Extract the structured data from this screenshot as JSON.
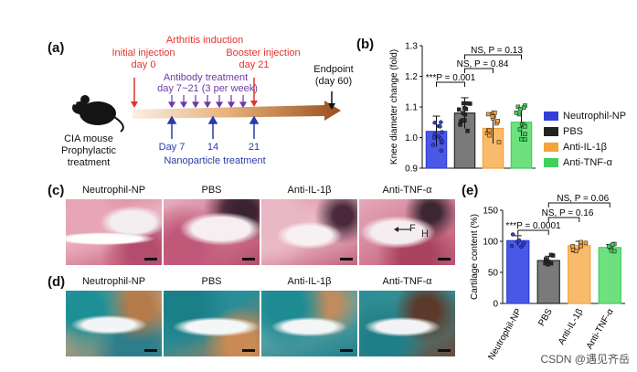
{
  "panels": {
    "a": "(a)",
    "b": "(b)",
    "c": "(c)",
    "d": "(d)",
    "e": "(e)"
  },
  "timeline": {
    "initial_injection": "Initial injection",
    "day0": "day 0",
    "arthritis_induction": "Arthritis induction",
    "booster_injection": "Booster injection",
    "day21_booster": "day 21",
    "antibody_treatment": "Antibody treatment",
    "antibody_days": "day 7~21 (3 per week)",
    "endpoint": "Endpoint",
    "endpoint_day": "(day 60)",
    "mouse_label_1": "CIA mouse",
    "mouse_label_2": "Prophylactic",
    "mouse_label_3": "treatment",
    "np_day7": "Day 7",
    "np_day14": "14",
    "np_day21": "21",
    "nanoparticle_treatment": "Nanoparticle treatment"
  },
  "colors": {
    "neutrophil_np": "#2f3fd8",
    "pbs": "#2a2a2a",
    "anti_il1b": "#f6a23a",
    "anti_tnfa": "#3fd05a",
    "red": "#e0342c",
    "blue": "#2b3aa8",
    "purple": "#6d3aa8"
  },
  "legend": {
    "items": [
      {
        "label": "Neutrophil-NP",
        "color": "#2f3fd8"
      },
      {
        "label": "PBS",
        "color": "#222222"
      },
      {
        "label": "Anti-IL-1β",
        "color": "#f6a23a"
      },
      {
        "label": "Anti-TNF-α",
        "color": "#3fd05a"
      }
    ]
  },
  "histology": {
    "groups": [
      "Neutrophil-NP",
      "PBS",
      "Anti-IL-1β",
      "Anti-TNF-α"
    ],
    "annotation_F": "F",
    "annotation_H": "H"
  },
  "chart_data": [
    {
      "type": "bar",
      "panel": "b",
      "categories": [
        "Neutrophil-NP",
        "PBS",
        "Anti-IL-1β",
        "Anti-TNF-α"
      ],
      "values": [
        1.02,
        1.08,
        1.03,
        1.05
      ],
      "errors": [
        0.05,
        0.05,
        0.05,
        0.045
      ],
      "ylabel": "Knee diameter change (fold)",
      "ylim": [
        0.9,
        1.3
      ],
      "yticks": [
        "0.9",
        "1.0",
        "1.1",
        "1.2",
        "1.3"
      ],
      "ytick_values": [
        0.9,
        1.0,
        1.1,
        1.2,
        1.3
      ],
      "significance": [
        {
          "text": "NS, P = 0.13",
          "from": 1,
          "to": 3
        },
        {
          "text": "NS, P = 0.84",
          "from": 1,
          "to": 2
        },
        {
          "text": "P = 0.001",
          "stars": "***",
          "from": 0,
          "to": 1
        }
      ]
    },
    {
      "type": "bar",
      "panel": "e",
      "categories": [
        "Neutrophil-NP",
        "PBS",
        "Anti-IL-1β",
        "Anti-TNF-α"
      ],
      "xtick_labels": [
        "Neutrophil-NP",
        "PBS",
        "Anti-IL-1β",
        "Anti-TNF-α"
      ],
      "values": [
        101,
        69,
        93,
        90
      ],
      "errors": [
        8,
        7,
        7,
        5
      ],
      "ylabel": "Cartilage content (%)",
      "ylim": [
        0,
        150
      ],
      "yticks": [
        "0",
        "50",
        "100",
        "150"
      ],
      "ytick_values": [
        0,
        50,
        100,
        150
      ],
      "significance": [
        {
          "text": "NS, P = 0.06",
          "from": 1,
          "to": 3
        },
        {
          "text": "NS, P = 0.16",
          "from": 1,
          "to": 2
        },
        {
          "text": "P = 0.0001",
          "stars": "***",
          "from": 0,
          "to": 1
        }
      ]
    }
  ],
  "watermark": "CSDN @遇见齐岳"
}
